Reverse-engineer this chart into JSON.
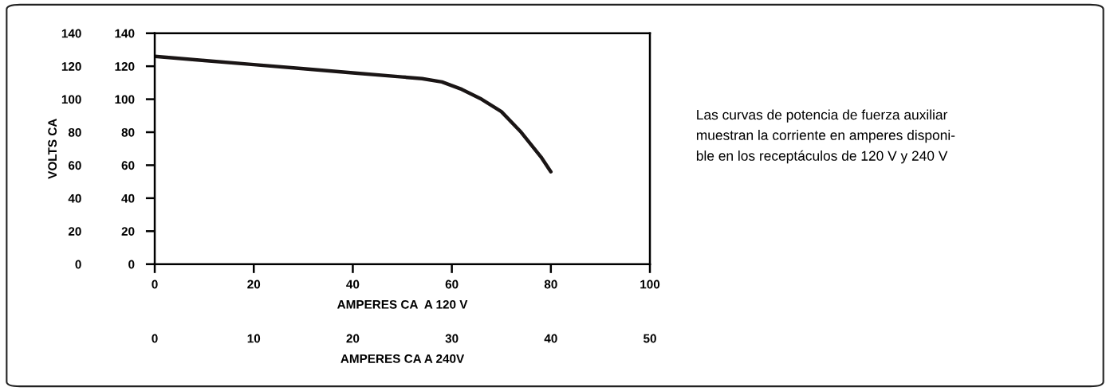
{
  "chart_data": {
    "type": "line",
    "xlabel": "AMPERES CA  A 120 V",
    "x2label": "AMPERES CA A 240V",
    "y2label": "VOLTS CA",
    "x": [
      0,
      10,
      20,
      30,
      40,
      50,
      54,
      58,
      62,
      66,
      70,
      74,
      78,
      80
    ],
    "series": [
      {
        "color": "#1a1515",
        "values": [
          126,
          123.5,
          121,
          118.5,
          116,
          113.5,
          112.5,
          110.5,
          106,
          100,
          92.5,
          80,
          65,
          56
        ]
      }
    ],
    "xlim": [
      0,
      100
    ],
    "xticks": [
      0,
      20,
      40,
      60,
      80,
      100
    ],
    "x2lim": [
      0,
      50
    ],
    "x2ticks": [
      0,
      10,
      20,
      30,
      40,
      50
    ],
    "ylim": [
      0,
      140
    ],
    "yticks": [
      0,
      20,
      40,
      60,
      80,
      100,
      120,
      140
    ],
    "y2lim": [
      0,
      140
    ],
    "y2ticks": [
      0,
      20,
      40,
      60,
      80,
      100,
      120,
      140
    ],
    "annotations": [
      "Las curvas de potencia de fuerza auxiliar\nmuestran la corriente en amperes disponi-\nble en los receptáculos de 120 V y 240 V"
    ],
    "grid": false,
    "legend": false,
    "marker": "none",
    "line_style": "solid"
  }
}
